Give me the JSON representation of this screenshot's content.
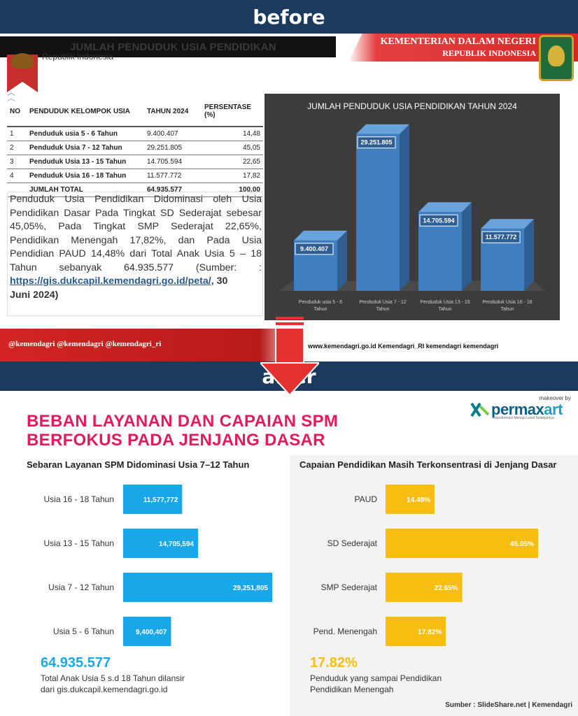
{
  "labels": {
    "before": "before",
    "after": "after"
  },
  "before": {
    "header_title": "JUMLAH PENDUDUK USIA PENDIDIKAN",
    "ministry_line1": "KEMENTERIAN DALAM NEGERI",
    "ministry_line2": "REPUBLIK INDONESIA",
    "ri_label": "Republik Indonesia",
    "table": {
      "headers": [
        "NO",
        "PENDUDUK KELOMPOK USIA",
        "TAHUN 2024",
        "PERSENTASE (%)"
      ],
      "rows": [
        [
          "1",
          "Penduduk usia 5 - 6 Tahun",
          "9.400.407",
          "14,48"
        ],
        [
          "2",
          "Penduduk Usia 7 - 12 Tahun",
          "29.251.805",
          "45,05"
        ],
        [
          "3",
          "Penduduk Usia 13 - 15 Tahun",
          "14.705.594",
          "22,65"
        ],
        [
          "4",
          "Penduduk Usia 16 - 18 Tahun",
          "11.577.772",
          "17,82"
        ]
      ],
      "total": [
        "",
        "JUMLAH TOTAL",
        "64.935.577",
        "100,00"
      ]
    },
    "paragraph_main": "Penduduk Usia Pendidikan Didominasi oleh Usia Pendidikan Dasar Pada Tingkat SD Sederajat sebesar 45,05%, Pada Tingkat SMP Sederajat 22,65%, Pendidikan Menengah 17,82%, dan Pada Usia Pendidian PAUD 14,48% dari Total Anak Usia 5 – 18 Tahun sebanyak 64.935.577 (Sumber: :",
    "paragraph_link": "https://gis.dukcapil.kemendagri.go.id/peta/,",
    "paragraph_date_a": " 30",
    "paragraph_date_b": "Juni 2024)",
    "social_left": "@kemendagri  @kemendagri  @kemendagri_ri",
    "social_right": "www.kemendagri.go.id    Kemendagri_RI    kemendagri    kemendagri"
  },
  "after": {
    "title_line1": "BEBAN LAYANAN DAN CAPAIAN SPM",
    "title_line2": "BERFOKUS PADA JENJANG DASAR",
    "logo_makeover": "makeover by",
    "logo_name_a": "permax",
    "logo_name_b": "art",
    "logo_tagline": "Transformasi Menuju Level Selanjutnya",
    "left_subtitle": "Sebaran Layanan SPM Didominasi Usia 7–12 Tahun",
    "right_subtitle": "Capaian Pendidikan Masih Terkonsentrasi di Jenjang Dasar",
    "left_big": "64.935.577",
    "left_note_1": "Total Anak Usia 5 s.d 18 Tahun dilansir",
    "left_note_2": "dari gis.dukcapil.kemendagri.go.id",
    "right_big": "17.82%",
    "right_note_1": "Penduduk yang sampai Pendidikan",
    "right_note_2": "Pendidikan Menengah",
    "source": "Sumber : SlideShare.net | Kemendagri"
  },
  "colors": {
    "blue": "#18a7e8",
    "yellow": "#f7bd11",
    "title_pink": "#e31b5a",
    "navy": "#1c3a5e",
    "old_bar": "#3f7fc0"
  },
  "chart_data": [
    {
      "type": "bar",
      "title": "JUMLAH PENDUDUK USIA PENDIDIKAN TAHUN 2024",
      "categories": [
        "Penduduk usia 5 - 6 Tahun",
        "Penduduk Usia 7 - 12 Tahun",
        "Penduduk Usia 13 - 15 Tahun",
        "Penduduk Usia 16 - 18 Tahun"
      ],
      "values": [
        9400407,
        29251805,
        14705594,
        11577772
      ],
      "value_labels": [
        "9.400.407",
        "29.251.805",
        "14.705.594",
        "11.577.772"
      ],
      "orientation": "vertical",
      "style": "3d",
      "ylim": [
        0,
        30000000
      ]
    },
    {
      "type": "bar",
      "title": "Sebaran Layanan SPM Didominasi Usia 7–12 Tahun",
      "orientation": "horizontal",
      "categories": [
        "Usia 16 - 18 Tahun",
        "Usia 13 - 15 Tahun",
        "Usia 7 - 12 Tahun",
        "Usia 5 - 6 Tahun"
      ],
      "values": [
        11577772,
        14705594,
        29251805,
        9400407
      ],
      "value_labels": [
        "11,577,772",
        "14,705,594",
        "29,251,805",
        "9,400,407"
      ],
      "color": "#18a7e8",
      "xlim": [
        0,
        29251805
      ]
    },
    {
      "type": "bar",
      "title": "Capaian Pendidikan Masih Terkonsentrasi di Jenjang Dasar",
      "orientation": "horizontal",
      "categories": [
        "PAUD",
        "SD Sederajat",
        "SMP Sederajat",
        "Pend. Menengah"
      ],
      "values": [
        14.48,
        45.05,
        22.65,
        17.82
      ],
      "value_labels": [
        "14.48%",
        "45.05%",
        "22.65%",
        "17.82%"
      ],
      "color": "#f7bd11",
      "xlim": [
        0,
        45.05
      ]
    }
  ]
}
